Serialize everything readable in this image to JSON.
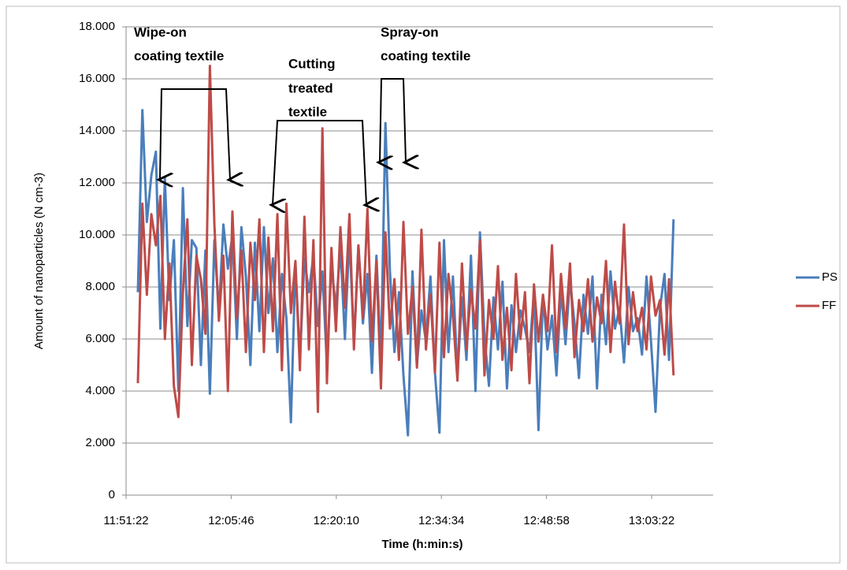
{
  "chart_data": {
    "type": "line",
    "ylabel": "Amount of nanoparticles (N cm-3)",
    "xlabel": "Time (h:min:s)",
    "annotations": [
      {
        "lines": [
          "Wipe-on",
          "coating textile"
        ]
      },
      {
        "lines": [
          "Cutting",
          "treated",
          "textile"
        ]
      },
      {
        "lines": [
          "Spray-on",
          "coating textile"
        ]
      }
    ],
    "x": [
      42779,
      42816,
      42853,
      42890,
      42927,
      42964,
      43001,
      43038,
      43075,
      43112,
      43149,
      43186,
      43223,
      43260,
      43297,
      43334,
      43371,
      43408,
      43445,
      43482,
      43519,
      43556,
      43593,
      43630,
      43667,
      43704,
      43741,
      43778,
      43815,
      43852,
      43889,
      43926,
      43963,
      44000,
      44037,
      44074,
      44111,
      44148,
      44185,
      44222,
      44259,
      44296,
      44333,
      44370,
      44407,
      44444,
      44481,
      44518,
      44555,
      44592,
      44629,
      44666,
      44703,
      44740,
      44777,
      44814,
      44851,
      44888,
      44925,
      44962,
      44999,
      45036,
      45073,
      45110,
      45147,
      45184,
      45221,
      45258,
      45295,
      45332,
      45369,
      45406,
      45443,
      45480,
      45517,
      45554,
      45591,
      45628,
      45665,
      45702,
      45739,
      45776,
      45813,
      45850,
      45887,
      45924,
      45961,
      45998,
      46035,
      46072,
      46109,
      46146,
      46183,
      46220,
      46257,
      46294,
      46331,
      46368,
      46405,
      46442,
      46479,
      46516,
      46553,
      46590,
      46627,
      46664,
      46701,
      46738,
      46775,
      46812,
      46849,
      46886,
      46923,
      46960,
      46997,
      47034,
      47071,
      47108,
      47145,
      47182
    ],
    "series": [
      {
        "name": "PS",
        "color": "#4a7ebb",
        "values": [
          7800,
          14800,
          10500,
          12300,
          13200,
          6400,
          12200,
          7500,
          9800,
          4000,
          11800,
          6500,
          9800,
          9500,
          5000,
          9400,
          3900,
          9800,
          7000,
          10400,
          8700,
          10000,
          6000,
          10300,
          8400,
          5000,
          9700,
          6300,
          10300,
          7000,
          9100,
          5500,
          8500,
          6800,
          2800,
          8900,
          5200,
          9100,
          7800,
          9200,
          6500,
          8600,
          5000,
          8800,
          7200,
          9500,
          6000,
          10000,
          5800,
          9600,
          6600,
          8500,
          4700,
          9200,
          5200,
          14300,
          8600,
          5500,
          7800,
          4600,
          2300,
          8600,
          5000,
          7100,
          5900,
          8400,
          4700,
          2400,
          9800,
          5500,
          8400,
          4600,
          7600,
          5200,
          9200,
          4000,
          10100,
          6100,
          4200,
          7600,
          5600,
          8200,
          4100,
          7300,
          5500,
          7100,
          6400,
          5500,
          7800,
          2500,
          7700,
          5600,
          6900,
          4600,
          7900,
          5800,
          8300,
          6600,
          4500,
          7700,
          6200,
          8400,
          4100,
          7700,
          5800,
          8600,
          6400,
          7200,
          5100,
          8000,
          6300,
          6800,
          5400,
          8400,
          5900,
          3200,
          7200,
          8500,
          5200,
          10600
        ]
      },
      {
        "name": "FF",
        "color": "#be4b48",
        "values": [
          4300,
          11200,
          7700,
          10800,
          9600,
          11500,
          6000,
          8900,
          4200,
          3000,
          7800,
          10600,
          5000,
          9200,
          8300,
          6200,
          16500,
          10400,
          6700,
          9200,
          4000,
          10900,
          6800,
          9400,
          5500,
          9700,
          7500,
          10600,
          5500,
          9900,
          6300,
          10800,
          4800,
          11200,
          7000,
          9000,
          4800,
          10700,
          5600,
          9800,
          3200,
          14100,
          4300,
          9500,
          6300,
          10300,
          7200,
          10800,
          5600,
          9600,
          6800,
          11000,
          5900,
          9000,
          4100,
          10100,
          6400,
          8300,
          5200,
          10500,
          6200,
          8000,
          4900,
          10200,
          5600,
          7700,
          4700,
          9700,
          5300,
          8500,
          6900,
          4400,
          8900,
          5600,
          7900,
          6400,
          9800,
          4600,
          7500,
          6000,
          8800,
          5200,
          7200,
          4800,
          8500,
          6000,
          7800,
          4300,
          8100,
          5900,
          7700,
          6300,
          9600,
          5500,
          8500,
          6400,
          8900,
          5300,
          7500,
          6300,
          8300,
          5900,
          7600,
          6600,
          9000,
          5500,
          8200,
          6600,
          10400,
          5800,
          7800,
          6300,
          7200,
          5600,
          8400,
          6900,
          7500,
          5400,
          8300,
          4600
        ]
      }
    ],
    "xlim": [
      42682,
      47507
    ],
    "xticks": [
      {
        "value": 42682,
        "label": "11:51:22"
      },
      {
        "value": 43546,
        "label": "12:05:46"
      },
      {
        "value": 44410,
        "label": "12:20:10"
      },
      {
        "value": 45274,
        "label": "12:34:34"
      },
      {
        "value": 46138,
        "label": "12:48:58"
      },
      {
        "value": 47002,
        "label": "13:03:22"
      }
    ],
    "ylim": [
      0,
      18000
    ],
    "yticks": [
      0,
      {
        "value": 2000,
        "label": "2.000"
      },
      {
        "value": 4000,
        "label": "4.000"
      },
      {
        "value": 6000,
        "label": "6.000"
      },
      {
        "value": 8000,
        "label": "8.000"
      },
      {
        "value": 10000,
        "label": "10.000"
      },
      {
        "value": 12000,
        "label": "12.000"
      },
      {
        "value": 14000,
        "label": "14.000"
      },
      {
        "value": 16000,
        "label": "16.000"
      },
      {
        "value": 18000,
        "label": "18.000"
      }
    ],
    "grid": true,
    "legend": "right"
  }
}
